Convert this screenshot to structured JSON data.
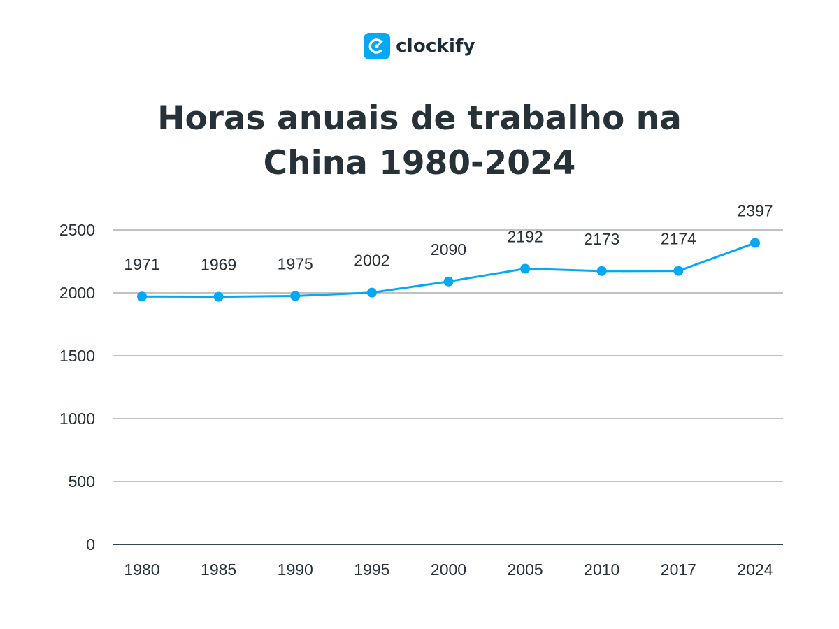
{
  "brand": {
    "name": "clockify",
    "color": "#03a9f4"
  },
  "title_line1": "Horas anuais de trabalho na",
  "title_line2": "China 1980-2024",
  "chart_data": {
    "type": "line",
    "title": "Horas anuais de trabalho na China 1980-2024",
    "xlabel": "",
    "ylabel": "",
    "categories": [
      "1980",
      "1985",
      "1990",
      "1995",
      "2000",
      "2005",
      "2010",
      "2017",
      "2024"
    ],
    "series": [
      {
        "values": [
          1971,
          1969,
          1975,
          2002,
          2090,
          2192,
          2173,
          2174,
          2397
        ]
      }
    ],
    "data_labels": [
      "1971",
      "1969",
      "1975",
      "2002",
      "2090",
      "2192",
      "2173",
      "2174",
      "2397"
    ],
    "yticks": [
      0,
      500,
      1000,
      1500,
      2000,
      2500
    ],
    "ylim": [
      0,
      2500
    ],
    "grid": true,
    "line_color": "#03a9f4",
    "grid_color": "#9e9e9e",
    "axis_color": "#37474f",
    "text_color": "#263238"
  }
}
